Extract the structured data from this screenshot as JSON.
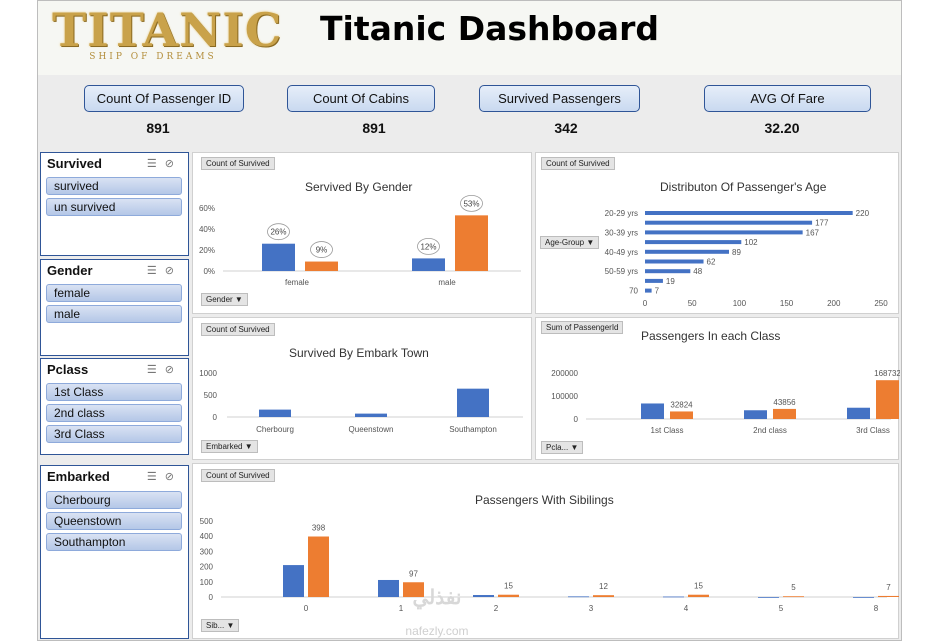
{
  "header": {
    "logo_title": "TITANIC",
    "logo_subtitle": "SHIP OF DREAMS",
    "title": "Titanic Dashboard"
  },
  "kpis": [
    {
      "label": "Count Of Passenger ID",
      "value": "891"
    },
    {
      "label": "Count Of Cabins",
      "value": "891"
    },
    {
      "label": "Survived Passengers",
      "value": "342"
    },
    {
      "label": "AVG Of Fare",
      "value": "32.20"
    }
  ],
  "slicers": [
    {
      "title": "Survived",
      "items": [
        "survived",
        "un survived"
      ]
    },
    {
      "title": "Gender",
      "items": [
        "female",
        "male"
      ]
    },
    {
      "title": "Pclass",
      "items": [
        "1st Class",
        "2nd class",
        "3rd Class"
      ]
    },
    {
      "title": "Embarked",
      "items": [
        "Cherbourg",
        "Queenstown",
        "Southampton"
      ]
    }
  ],
  "slicer_icons": [
    "multi-select-icon",
    "clear-filter-icon"
  ],
  "colors": {
    "blue": "#4472c4",
    "orange": "#ed7d31",
    "accent": "#2f5597"
  },
  "charts": {
    "gender": {
      "field_value": "Count of Survived",
      "field_axis": "Gender",
      "chart_data": {
        "type": "bar",
        "title": "Servived By Gender",
        "categories": [
          "female",
          "male"
        ],
        "series": [
          {
            "values": [
              0.26,
              0.12
            ]
          },
          {
            "values": [
              0.09,
              0.53
            ]
          }
        ],
        "data_labels": [
          [
            "26%",
            "12%"
          ],
          [
            "9%",
            "53%"
          ]
        ],
        "yticks": [
          "0%",
          "20%",
          "40%",
          "60%"
        ],
        "ylim": [
          0,
          0.6
        ]
      }
    },
    "age": {
      "field_value": "Count of Survived",
      "field_axis": "Age-Group",
      "chart_data": {
        "type": "bar",
        "title": "Distributon Of Passenger's Age",
        "categories": [
          "20-29 yrs",
          "",
          "30-39 yrs",
          "",
          "40-49 yrs",
          "",
          "50-59 yrs",
          "",
          "70"
        ],
        "values": [
          220,
          177,
          167,
          102,
          89,
          62,
          48,
          19,
          7
        ],
        "xticks": [
          "0",
          "50",
          "100",
          "150",
          "200",
          "250"
        ],
        "xlim": [
          0,
          250
        ]
      }
    },
    "embark": {
      "field_value": "Count of Survived",
      "field_axis": "Embarked",
      "chart_data": {
        "type": "bar",
        "title": "Survived By Embark Town",
        "categories": [
          "Cherbourg",
          "Queenstown",
          "Southampton"
        ],
        "values": [
          168,
          77,
          644
        ],
        "yticks": [
          "0",
          "500",
          "1000"
        ],
        "ylim": [
          0,
          1000
        ]
      }
    },
    "pclass": {
      "field_value": "Sum of PassengerId",
      "field_axis": "Pcla...",
      "chart_data": {
        "type": "bar",
        "title": "Passengers In each Class",
        "categories": [
          "1st Class",
          "2nd class",
          "3rd Class"
        ],
        "series": [
          {
            "values": [
              67500,
              38000,
              49000
            ]
          },
          {
            "values": [
              32824,
              43856,
              168732
            ]
          }
        ],
        "data_labels": [
          "32824",
          "43856",
          "168732"
        ],
        "yticks": [
          "0",
          "100000",
          "200000"
        ],
        "ylim": [
          0,
          200000
        ]
      }
    },
    "siblings": {
      "field_value": "Count of Survived",
      "field_axis": "Sib...",
      "chart_data": {
        "type": "bar",
        "title": "Passengers With Sibilings",
        "categories": [
          "0",
          "1",
          "2",
          "3",
          "4",
          "5",
          "8"
        ],
        "series": [
          {
            "values": [
              210,
              112,
              13,
              4,
              3,
              0,
              0
            ]
          },
          {
            "values": [
              398,
              97,
              15,
              12,
              15,
              5,
              7
            ]
          }
        ],
        "data_labels": [
          "398",
          "97",
          "15",
          "12",
          "15",
          "5",
          "7"
        ],
        "yticks": [
          "0",
          "100",
          "200",
          "300",
          "400",
          "500"
        ],
        "ylim": [
          0,
          500
        ]
      }
    }
  },
  "watermark": {
    "text": "نفذلي",
    "sub": "nafezly.com"
  }
}
